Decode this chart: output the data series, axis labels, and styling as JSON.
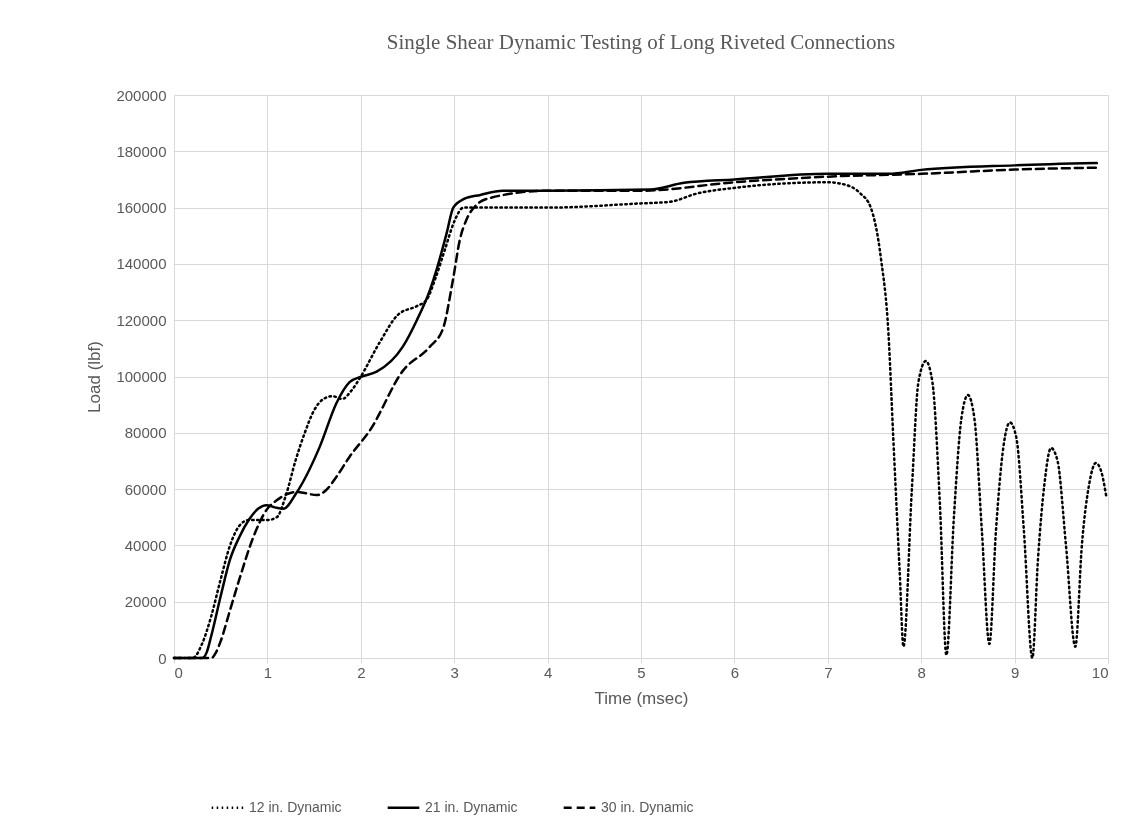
{
  "chart_data": {
    "type": "line",
    "title": "Single Shear Dynamic Testing of Long Riveted Connections",
    "xlabel": "Time (msec)",
    "ylabel": "Load (lbf)",
    "xlim": [
      0,
      10
    ],
    "xticks": [
      0,
      1,
      2,
      3,
      4,
      5,
      6,
      7,
      8,
      9,
      10
    ],
    "ylim": [
      0,
      200000
    ],
    "yticks": [
      0,
      20000,
      40000,
      60000,
      80000,
      100000,
      120000,
      140000,
      160000,
      180000,
      200000
    ],
    "grid": true,
    "legend": "bottom",
    "marker": "none",
    "series": [
      {
        "name": "12 in. Dynamic",
        "color": "#000000",
        "line_style": "dotted",
        "x": [
          0,
          0.2,
          0.3,
          0.4,
          0.5,
          0.6,
          0.7,
          0.8,
          0.9,
          1.0,
          1.1,
          1.2,
          1.3,
          1.4,
          1.5,
          1.6,
          1.7,
          1.8,
          1.9,
          2.0,
          2.2,
          2.4,
          2.6,
          2.7,
          2.8,
          2.9,
          3.0,
          3.1,
          3.5,
          4.0,
          5.0,
          5.3,
          5.6,
          6.0,
          6.5,
          7.0,
          7.2,
          7.35,
          7.46,
          7.57,
          7.65,
          7.7,
          7.77,
          7.81,
          7.9,
          7.97,
          8.05,
          8.12,
          8.2,
          8.27,
          8.35,
          8.43,
          8.5,
          8.57,
          8.65,
          8.73,
          8.8,
          8.88,
          8.95,
          9.02,
          9.1,
          9.19,
          9.25,
          9.32,
          9.39,
          9.46,
          9.55,
          9.65,
          9.72,
          9.8,
          9.87,
          9.93,
          9.98
        ],
        "values": [
          0,
          0,
          5000,
          15000,
          28000,
          40000,
          47000,
          49000,
          49000,
          49000,
          50000,
          58000,
          70000,
          80000,
          88000,
          92000,
          93000,
          92000,
          95000,
          100000,
          112000,
          122000,
          125000,
          127000,
          135000,
          145000,
          155000,
          160000,
          160000,
          160000,
          161500,
          162000,
          165000,
          167000,
          168500,
          169000,
          168000,
          165000,
          160000,
          141700,
          115000,
          79000,
          30500,
          4000,
          60000,
          98000,
          105500,
          98000,
          55000,
          1000,
          50000,
          85000,
          93400,
          85000,
          45000,
          5000,
          45000,
          75000,
          83700,
          78000,
          45000,
          0,
          35000,
          62000,
          74600,
          70000,
          40000,
          4000,
          40000,
          62000,
          69300,
          66000,
          57700
        ]
      },
      {
        "name": "21 in. Dynamic",
        "color": "#000000",
        "line_style": "solid",
        "x": [
          0,
          0.3,
          0.35,
          0.4,
          0.5,
          0.6,
          0.7,
          0.8,
          0.9,
          0.99,
          1.08,
          1.17,
          1.31,
          1.56,
          1.74,
          1.88,
          2.01,
          2.17,
          2.45,
          2.6,
          2.74,
          2.81,
          2.92,
          2.99,
          3.1,
          3.28,
          3.52,
          4.0,
          5.1,
          5.46,
          6.0,
          7.0,
          7.65,
          8.0,
          9.0,
          9.88
        ],
        "values": [
          0,
          0,
          2000,
          8000,
          22000,
          35000,
          43000,
          49000,
          53000,
          54300,
          53500,
          53000,
          58600,
          75000,
          90600,
          98000,
          100000,
          101700,
          110600,
          120000,
          130700,
          137800,
          151000,
          160000,
          163000,
          164500,
          166000,
          166000,
          166400,
          168800,
          170000,
          172000,
          172000,
          173400,
          175000,
          175800
        ]
      },
      {
        "name": "30 in. Dynamic",
        "color": "#000000",
        "line_style": "dashed",
        "x": [
          0,
          0.4,
          0.45,
          0.5,
          0.6,
          0.7,
          0.85,
          0.99,
          1.1,
          1.31,
          1.53,
          1.63,
          1.74,
          1.88,
          2.1,
          2.45,
          2.74,
          2.88,
          2.99,
          3.06,
          3.13,
          3.24,
          3.38,
          4.0,
          5.0,
          6.0,
          7.0,
          8.0,
          9.0,
          9.88
        ],
        "values": [
          0,
          0,
          2000,
          6000,
          17000,
          28000,
          43000,
          52600,
          56000,
          59000,
          57900,
          59700,
          64400,
          71500,
          81000,
          102000,
          110600,
          117000,
          135000,
          148500,
          155600,
          161000,
          163400,
          166000,
          166000,
          169000,
          171000,
          172000,
          173500,
          174200
        ]
      }
    ]
  }
}
